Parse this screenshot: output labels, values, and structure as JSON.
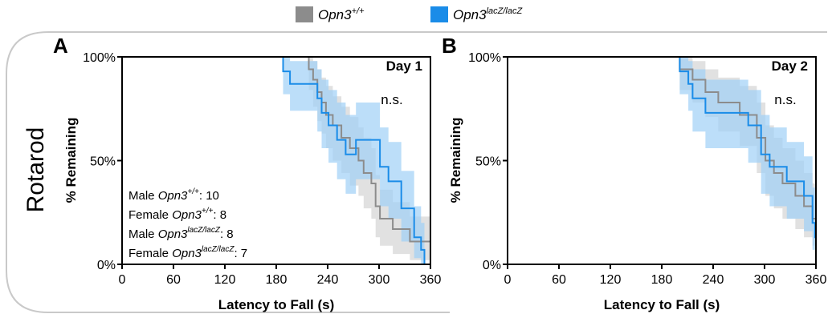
{
  "row_label": "Rotarod",
  "legend": [
    {
      "gene": "Opn3",
      "sup": "+/+",
      "color": "#8c8c8c"
    },
    {
      "gene": "Opn3",
      "sup": "lacZ/lacZ",
      "color": "#1a8ce8"
    }
  ],
  "colors": {
    "wt": "#8c8c8c",
    "wt_band": "#d4d4d4",
    "ko": "#1a8ce8",
    "ko_band": "#9fd0f6"
  },
  "chart_data": [
    {
      "panel": "A",
      "type": "line",
      "subtype": "kaplan-meier survival with confidence bands",
      "title": "Day 1",
      "annotation": "n.s.",
      "xlabel": "Latency to Fall (s)",
      "ylabel": "% Remaining",
      "xlim": [
        0,
        360
      ],
      "ylim": [
        0,
        100
      ],
      "xticks": [
        "0",
        "60",
        "120",
        "180",
        "240",
        "300",
        "360"
      ],
      "yticks": [
        "0%",
        "50%",
        "100%"
      ],
      "n_text": [
        {
          "prefix": "Male ",
          "gene": "Opn3",
          "sup": "+/+",
          "suffix": ": 10"
        },
        {
          "prefix": "Female ",
          "gene": "Opn3",
          "sup": "+/+",
          "suffix": ": 8"
        },
        {
          "prefix": "Male ",
          "gene": "Opn3",
          "sup": "lacZ/lacZ",
          "suffix": ": 8"
        },
        {
          "prefix": "Female ",
          "gene": "Opn3",
          "sup": "lacZ/lacZ",
          "suffix": ": 7"
        }
      ],
      "series": [
        {
          "key": "wt",
          "x": [
            0,
            218,
            223,
            228,
            233,
            238,
            246,
            256,
            266,
            276,
            282,
            291,
            296,
            301,
            316,
            336,
            346,
            360
          ],
          "y": [
            100,
            94,
            89,
            83,
            78,
            72,
            67,
            61,
            56,
            50,
            44,
            39,
            28,
            22,
            17,
            11,
            11,
            11
          ],
          "lower": [
            100,
            84,
            76,
            69,
            63,
            56,
            50,
            44,
            38,
            33,
            27,
            22,
            13,
            9,
            5,
            2,
            2,
            2
          ],
          "upper": [
            100,
            100,
            98,
            94,
            90,
            86,
            81,
            76,
            71,
            66,
            61,
            56,
            43,
            36,
            30,
            23,
            23,
            23
          ]
        },
        {
          "key": "ko",
          "x": [
            0,
            188,
            196,
            228,
            233,
            241,
            251,
            261,
            273,
            301,
            311,
            326,
            341,
            349,
            353,
            360
          ],
          "y": [
            100,
            93,
            87,
            80,
            73,
            67,
            60,
            53,
            60,
            47,
            40,
            27,
            13,
            7,
            0,
            0
          ],
          "lower": [
            100,
            82,
            74,
            64,
            56,
            49,
            41,
            34,
            41,
            28,
            22,
            11,
            3,
            0,
            0,
            0
          ],
          "upper": [
            100,
            100,
            98,
            94,
            89,
            84,
            78,
            72,
            78,
            66,
            59,
            45,
            28,
            20,
            0,
            0
          ]
        }
      ]
    },
    {
      "panel": "B",
      "type": "line",
      "subtype": "kaplan-meier survival with confidence bands",
      "title": "Day 2",
      "annotation": "n.s.",
      "xlabel": "Latency to Fall (s)",
      "ylabel": "% Remaining",
      "xlim": [
        0,
        360
      ],
      "ylim": [
        0,
        100
      ],
      "xticks": [
        "0",
        "60",
        "120",
        "180",
        "240",
        "300",
        "360"
      ],
      "yticks": [
        "0%",
        "50%",
        "100%"
      ],
      "series": [
        {
          "key": "wt",
          "x": [
            0,
            201,
            216,
            231,
            246,
            271,
            291,
            301,
            311,
            321,
            336,
            346,
            356,
            360
          ],
          "y": [
            100,
            94,
            89,
            83,
            78,
            72,
            61,
            50,
            44,
            39,
            33,
            28,
            22,
            22
          ],
          "lower": [
            100,
            84,
            78,
            71,
            64,
            57,
            44,
            33,
            27,
            22,
            17,
            13,
            9,
            9
          ],
          "upper": [
            100,
            100,
            98,
            94,
            90,
            86,
            78,
            67,
            61,
            56,
            50,
            44,
            39,
            39
          ]
        },
        {
          "key": "ko",
          "x": [
            0,
            201,
            211,
            216,
            231,
            271,
            281,
            296,
            306,
            316,
            326,
            346,
            356,
            359,
            360
          ],
          "y": [
            100,
            93,
            87,
            80,
            73,
            73,
            67,
            53,
            47,
            47,
            40,
            33,
            20,
            13,
            13
          ],
          "lower": [
            100,
            82,
            74,
            64,
            56,
            56,
            49,
            34,
            28,
            28,
            22,
            16,
            7,
            3,
            3
          ],
          "upper": [
            100,
            100,
            98,
            94,
            89,
            89,
            84,
            72,
            66,
            66,
            59,
            52,
            37,
            28,
            28
          ]
        }
      ]
    }
  ]
}
